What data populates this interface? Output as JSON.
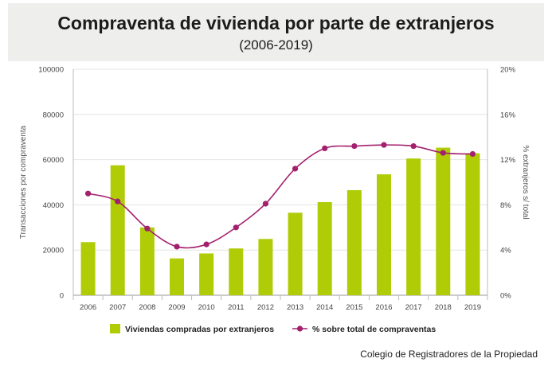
{
  "header": {
    "title": "Compraventa de vivienda por parte de extranjeros",
    "subtitle": "(2006-2019)"
  },
  "source": "Colegio de Registradores de la Propiedad",
  "colors": {
    "bars": "#afcc07",
    "line": "#a3206e",
    "title_band": "#eeeeec"
  },
  "chart_data": {
    "type": "bar",
    "categories": [
      "2006",
      "2007",
      "2008",
      "2009",
      "2010",
      "2011",
      "2012",
      "2013",
      "2014",
      "2015",
      "2016",
      "2017",
      "2018",
      "2019"
    ],
    "series": [
      {
        "name": "Viviendas compradas por extranjeros",
        "type": "bar",
        "axis": "left",
        "values": [
          23500,
          57500,
          30000,
          16300,
          18500,
          20700,
          24900,
          36500,
          41200,
          46500,
          53500,
          60500,
          65300,
          62800
        ]
      },
      {
        "name": "% sobre total de compraventas",
        "type": "line",
        "axis": "right",
        "values": [
          9.0,
          8.3,
          5.9,
          4.3,
          4.5,
          6.0,
          8.1,
          11.2,
          13.0,
          13.2,
          13.3,
          13.2,
          12.6,
          12.5
        ]
      }
    ],
    "ylabel": "Transacciones por compraventa",
    "y2label": "% extranjeros s/ total",
    "ylim": [
      0,
      100000
    ],
    "y2lim": [
      0,
      20
    ],
    "yticks": [
      "0",
      "20000",
      "40000",
      "60000",
      "80000",
      "100000"
    ],
    "y2ticks": [
      "0%",
      "4%",
      "8%",
      "12%",
      "16%",
      "20%"
    ],
    "legend_position": "bottom"
  }
}
